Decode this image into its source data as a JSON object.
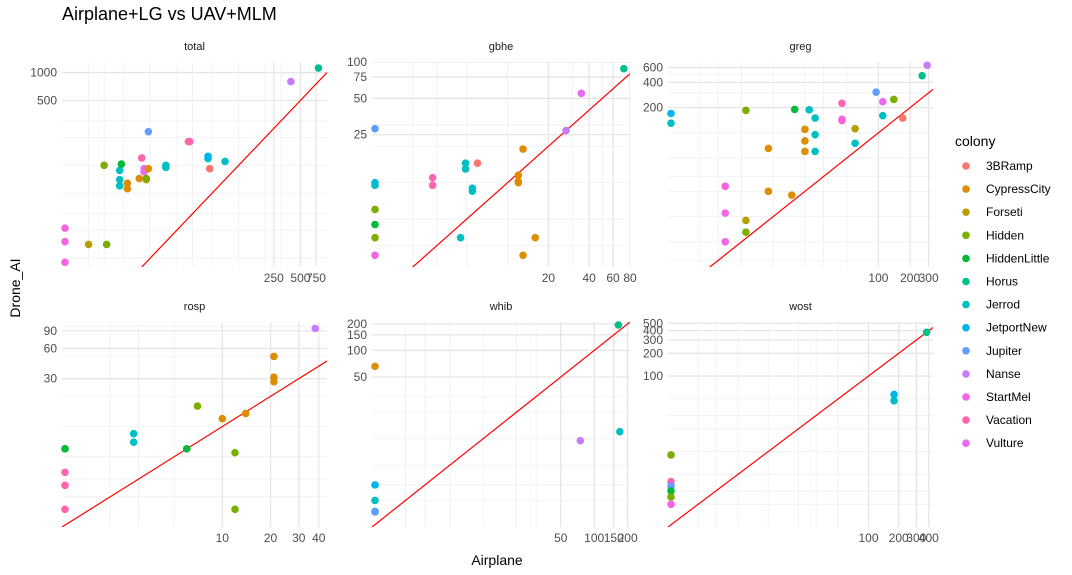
{
  "title": "Airplane+LG vs UAV+MLM",
  "xlabel": "Airplane",
  "ylabel": "Drone_AI",
  "legend_title": "colony",
  "colors": {
    "3BRamp": "#F8766D",
    "CypressCity": "#DE8C00",
    "Forseti": "#B79F00",
    "Hidden": "#7CAE00",
    "HiddenLittle": "#00BA38",
    "Horus": "#00C08B",
    "Jerrod": "#00BFC4",
    "JetportNew": "#00B4F0",
    "Jupiter": "#619CFF",
    "Nanse": "#C77CFF",
    "StartMel": "#F564E3",
    "Vacation": "#FF64B0",
    "Vulture": "#E76BF3"
  },
  "colonies": [
    "3BRamp",
    "CypressCity",
    "Forseti",
    "Hidden",
    "HiddenLittle",
    "Horus",
    "Jerrod",
    "JetportNew",
    "Jupiter",
    "Nanse",
    "StartMel",
    "Vacation",
    "Vulture"
  ],
  "chart_data": [
    {
      "type": "scatter",
      "panel": "total",
      "scale": "log",
      "xlim": [
        1,
        1000
      ],
      "ylim": [
        8,
        1300
      ],
      "xticks": [
        250,
        500,
        750
      ],
      "xtick_labels": [
        "250",
        "500",
        "750"
      ],
      "yticks": [
        500,
        1000
      ],
      "ytick_labels": [
        "500",
        "1000"
      ],
      "points": [
        {
          "x": 1,
          "y": 9,
          "c": "StartMel"
        },
        {
          "x": 1,
          "y": 15,
          "c": "StartMel"
        },
        {
          "x": 1,
          "y": 21,
          "c": "StartMel"
        },
        {
          "x": 2,
          "y": 14,
          "c": "Forseti"
        },
        {
          "x": 3.2,
          "y": 14,
          "c": "Hidden"
        },
        {
          "x": 3,
          "y": 100,
          "c": "Hidden"
        },
        {
          "x": 4.5,
          "y": 60,
          "c": "Jerrod"
        },
        {
          "x": 4.5,
          "y": 70,
          "c": "Jerrod"
        },
        {
          "x": 4.5,
          "y": 88,
          "c": "Jerrod"
        },
        {
          "x": 4.7,
          "y": 103,
          "c": "HiddenLittle"
        },
        {
          "x": 5.5,
          "y": 56,
          "c": "CypressCity"
        },
        {
          "x": 5.5,
          "y": 64,
          "c": "CypressCity"
        },
        {
          "x": 7.5,
          "y": 72,
          "c": "CypressCity"
        },
        {
          "x": 8,
          "y": 120,
          "c": "Vacation"
        },
        {
          "x": 8.5,
          "y": 92,
          "c": "Vulture"
        },
        {
          "x": 8.5,
          "y": 85,
          "c": "Vulture"
        },
        {
          "x": 9,
          "y": 70,
          "c": "Forseti"
        },
        {
          "x": 9,
          "y": 72,
          "c": "Hidden"
        },
        {
          "x": 9.5,
          "y": 92,
          "c": "CypressCity"
        },
        {
          "x": 9.5,
          "y": 230,
          "c": "Jupiter"
        },
        {
          "x": 15,
          "y": 95,
          "c": "Jerrod"
        },
        {
          "x": 15,
          "y": 100,
          "c": "Jerrod"
        },
        {
          "x": 27,
          "y": 180,
          "c": "3BRamp"
        },
        {
          "x": 28,
          "y": 180,
          "c": "Vacation"
        },
        {
          "x": 45,
          "y": 118,
          "c": "Jerrod"
        },
        {
          "x": 45,
          "y": 125,
          "c": "JetportNew"
        },
        {
          "x": 47,
          "y": 92,
          "c": "3BRamp"
        },
        {
          "x": 70,
          "y": 110,
          "c": "Jerrod"
        },
        {
          "x": 390,
          "y": 800,
          "c": "Nanse"
        },
        {
          "x": 800,
          "y": 1120,
          "c": "Horus"
        }
      ]
    },
    {
      "type": "scatter",
      "panel": "gbhe",
      "scale": "log",
      "xlim": [
        1,
        80
      ],
      "ylim": [
        2,
        100
      ],
      "xticks": [
        20,
        40,
        60,
        80
      ],
      "xtick_labels": [
        "20",
        "40",
        "60",
        "80"
      ],
      "yticks": [
        25,
        50,
        75,
        100
      ],
      "ytick_labels": [
        "25",
        "50",
        "75",
        "100"
      ],
      "points": [
        {
          "x": 1,
          "y": 28,
          "c": "Jupiter"
        },
        {
          "x": 1,
          "y": 10,
          "c": "JetportNew"
        },
        {
          "x": 1,
          "y": 9.5,
          "c": "Jerrod"
        },
        {
          "x": 1,
          "y": 6,
          "c": "Hidden"
        },
        {
          "x": 1,
          "y": 4.5,
          "c": "HiddenLittle"
        },
        {
          "x": 1,
          "y": 3.5,
          "c": "Hidden"
        },
        {
          "x": 1,
          "y": 2.5,
          "c": "StartMel"
        },
        {
          "x": 2.8,
          "y": 11,
          "c": "Vacation"
        },
        {
          "x": 2.8,
          "y": 9.5,
          "c": "Vacation"
        },
        {
          "x": 4.5,
          "y": 3.5,
          "c": "Jerrod"
        },
        {
          "x": 4.9,
          "y": 13,
          "c": "Jerrod"
        },
        {
          "x": 4.9,
          "y": 14.5,
          "c": "Jerrod"
        },
        {
          "x": 5.5,
          "y": 9,
          "c": "Jerrod"
        },
        {
          "x": 5.5,
          "y": 8.5,
          "c": "Jerrod"
        },
        {
          "x": 6,
          "y": 14.5,
          "c": "3BRamp"
        },
        {
          "x": 12,
          "y": 10,
          "c": "CypressCity"
        },
        {
          "x": 12,
          "y": 11.5,
          "c": "CypressCity"
        },
        {
          "x": 12,
          "y": 10.2,
          "c": "CypressCity"
        },
        {
          "x": 13,
          "y": 19,
          "c": "CypressCity"
        },
        {
          "x": 13,
          "y": 2.5,
          "c": "CypressCity"
        },
        {
          "x": 16,
          "y": 3.5,
          "c": "CypressCity"
        },
        {
          "x": 27,
          "y": 27,
          "c": "Nanse"
        },
        {
          "x": 35,
          "y": 55,
          "c": "Vulture"
        },
        {
          "x": 72,
          "y": 88,
          "c": "Horus"
        }
      ]
    },
    {
      "type": "scatter",
      "panel": "greg",
      "scale": "log",
      "xlim": [
        1,
        330
      ],
      "ylim": [
        2.5,
        700
      ],
      "xticks": [
        100,
        200,
        300
      ],
      "xtick_labels": [
        "100",
        "200",
        "300"
      ],
      "yticks": [
        200,
        400,
        600
      ],
      "ytick_labels": [
        "200",
        "400",
        "600"
      ],
      "points": [
        {
          "x": 1,
          "y": 170,
          "c": "JetportNew"
        },
        {
          "x": 1,
          "y": 130,
          "c": "Jerrod"
        },
        {
          "x": 3.5,
          "y": 23,
          "c": "StartMel"
        },
        {
          "x": 3.5,
          "y": 11,
          "c": "StartMel"
        },
        {
          "x": 3.5,
          "y": 5,
          "c": "StartMel"
        },
        {
          "x": 5.5,
          "y": 9,
          "c": "Forseti"
        },
        {
          "x": 5.5,
          "y": 6.5,
          "c": "Hidden"
        },
        {
          "x": 5.5,
          "y": 185,
          "c": "Hidden"
        },
        {
          "x": 9,
          "y": 65,
          "c": "CypressCity"
        },
        {
          "x": 9,
          "y": 20,
          "c": "CypressCity"
        },
        {
          "x": 15,
          "y": 18,
          "c": "CypressCity"
        },
        {
          "x": 16,
          "y": 190,
          "c": "HiddenLittle"
        },
        {
          "x": 20,
          "y": 110,
          "c": "CypressCity"
        },
        {
          "x": 20,
          "y": 80,
          "c": "CypressCity"
        },
        {
          "x": 20,
          "y": 60,
          "c": "CypressCity"
        },
        {
          "x": 22,
          "y": 188,
          "c": "Jerrod"
        },
        {
          "x": 25,
          "y": 95,
          "c": "Jerrod"
        },
        {
          "x": 25,
          "y": 60,
          "c": "Jerrod"
        },
        {
          "x": 25,
          "y": 150,
          "c": "Jerrod"
        },
        {
          "x": 45,
          "y": 140,
          "c": "Vacation"
        },
        {
          "x": 45,
          "y": 145,
          "c": "StartMel"
        },
        {
          "x": 45,
          "y": 225,
          "c": "Vacation"
        },
        {
          "x": 60,
          "y": 112,
          "c": "Forseti"
        },
        {
          "x": 60,
          "y": 75,
          "c": "Jerrod"
        },
        {
          "x": 95,
          "y": 305,
          "c": "Jupiter"
        },
        {
          "x": 110,
          "y": 160,
          "c": "Jerrod"
        },
        {
          "x": 110,
          "y": 235,
          "c": "Vulture"
        },
        {
          "x": 140,
          "y": 250,
          "c": "Hidden"
        },
        {
          "x": 170,
          "y": 150,
          "c": "3BRamp"
        },
        {
          "x": 260,
          "y": 480,
          "c": "Horus"
        },
        {
          "x": 290,
          "y": 640,
          "c": "Nanse"
        }
      ]
    },
    {
      "type": "scatter",
      "panel": "rosp",
      "scale": "log",
      "xlim": [
        1,
        45
      ],
      "ylim": [
        1,
        110
      ],
      "xticks": [
        10,
        20,
        30,
        40
      ],
      "xtick_labels": [
        "10",
        "20",
        "30",
        "40"
      ],
      "yticks": [
        30,
        60,
        90
      ],
      "ytick_labels": [
        "30",
        "60",
        "90"
      ],
      "points": [
        {
          "x": 1,
          "y": 6,
          "c": "HiddenLittle"
        },
        {
          "x": 1,
          "y": 3.5,
          "c": "Vacation"
        },
        {
          "x": 1,
          "y": 2.6,
          "c": "Vacation"
        },
        {
          "x": 1,
          "y": 1.5,
          "c": "Vacation"
        },
        {
          "x": 2.8,
          "y": 8.5,
          "c": "Jerrod"
        },
        {
          "x": 2.8,
          "y": 7,
          "c": "Jerrod"
        },
        {
          "x": 6,
          "y": 6,
          "c": "HiddenLittle"
        },
        {
          "x": 7,
          "y": 16,
          "c": "Hidden"
        },
        {
          "x": 10,
          "y": 12,
          "c": "CypressCity"
        },
        {
          "x": 12,
          "y": 5.5,
          "c": "Hidden"
        },
        {
          "x": 12,
          "y": 1.5,
          "c": "Hidden"
        },
        {
          "x": 14,
          "y": 13.5,
          "c": "CypressCity"
        },
        {
          "x": 21,
          "y": 28,
          "c": "CypressCity"
        },
        {
          "x": 21,
          "y": 31,
          "c": "CypressCity"
        },
        {
          "x": 21,
          "y": 50,
          "c": "CypressCity"
        },
        {
          "x": 38,
          "y": 95,
          "c": "Nanse"
        }
      ]
    },
    {
      "type": "scatter",
      "panel": "whib",
      "scale": "log",
      "xlim": [
        1,
        210
      ],
      "ylim": [
        1,
        210
      ],
      "xticks": [
        50,
        100,
        150,
        200
      ],
      "xtick_labels": [
        "50",
        "100",
        "150",
        "200"
      ],
      "yticks": [
        50,
        100,
        150,
        200
      ],
      "ytick_labels": [
        "50",
        "100",
        "150",
        "200"
      ],
      "points": [
        {
          "x": 1,
          "y": 66,
          "c": "CypressCity"
        },
        {
          "x": 1,
          "y": 3,
          "c": "JetportNew"
        },
        {
          "x": 1,
          "y": 2,
          "c": "Jerrod"
        },
        {
          "x": 1,
          "y": 1.5,
          "c": "JetportNew"
        },
        {
          "x": 1,
          "y": 1.48,
          "c": "Jupiter"
        },
        {
          "x": 75,
          "y": 9.5,
          "c": "Nanse"
        },
        {
          "x": 170,
          "y": 12,
          "c": "Jerrod"
        },
        {
          "x": 165,
          "y": 200,
          "c": "Horus"
        }
      ]
    },
    {
      "type": "scatter",
      "panel": "wost",
      "scale": "log",
      "xlim": [
        1,
        440
      ],
      "ylim": [
        1,
        520
      ],
      "xticks": [
        100,
        200,
        300,
        400
      ],
      "xtick_labels": [
        "100",
        "200",
        "300",
        "400"
      ],
      "yticks": [
        100,
        200,
        300,
        400,
        500
      ],
      "ytick_labels": [
        "100",
        "200",
        "300",
        "400",
        "500"
      ],
      "points": [
        {
          "x": 1,
          "y": 9,
          "c": "Hidden"
        },
        {
          "x": 1,
          "y": 4,
          "c": "Vacation"
        },
        {
          "x": 1,
          "y": 3.5,
          "c": "Jupiter"
        },
        {
          "x": 1,
          "y": 3,
          "c": "HiddenLittle"
        },
        {
          "x": 1,
          "y": 2.5,
          "c": "Hidden"
        },
        {
          "x": 1,
          "y": 2,
          "c": "StartMel"
        },
        {
          "x": 180,
          "y": 57,
          "c": "JetportNew"
        },
        {
          "x": 180,
          "y": 47,
          "c": "Jerrod"
        },
        {
          "x": 380,
          "y": 380,
          "c": "Horus"
        }
      ]
    }
  ]
}
